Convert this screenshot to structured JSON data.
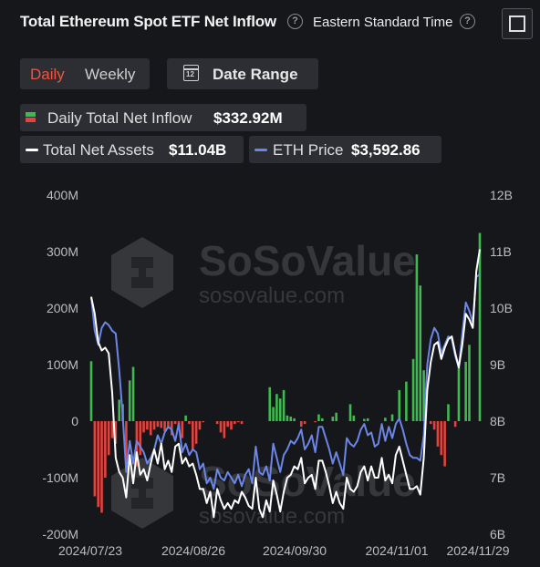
{
  "header": {
    "title": "Total Ethereum Spot ETF Net Inflow",
    "timezone": "Eastern Standard Time"
  },
  "controls": {
    "daily_label": "Daily",
    "weekly_label": "Weekly",
    "date_range_label": "Date Range",
    "calendar_icon_text": "12"
  },
  "legend": {
    "inflow_label": "Daily Total Net Inflow",
    "inflow_value": "$332.92M",
    "assets_label": "Total Net Assets",
    "assets_value": "$11.04B",
    "eth_label": "ETH Price",
    "eth_value": "$3,592.86"
  },
  "watermark": {
    "brand": "SoSoValue",
    "url": "sosovalue.com"
  },
  "colors": {
    "positive_bar": "#3fb950",
    "negative_bar": "#e0443e",
    "total_assets_line": "#ffffff",
    "eth_price_line": "#6b86e6",
    "accent": "#f0553c"
  },
  "chart_data": {
    "type": "bar+line",
    "title": "Total Ethereum Spot ETF Net Inflow",
    "x_tick_labels": [
      "2024/07/23",
      "2024/08/26",
      "2024/09/30",
      "2024/11/01",
      "2024/11/29"
    ],
    "left_axis": {
      "ticks": [
        "400M",
        "300M",
        "200M",
        "100M",
        "0",
        "-100M",
        "-200M"
      ],
      "range_musd": [
        -200,
        400
      ]
    },
    "right_axis": {
      "ticks": [
        "12B",
        "11B",
        "10B",
        "9B",
        "8B",
        "7B",
        "6B"
      ],
      "range_busd": [
        6,
        12
      ]
    },
    "grid": false,
    "series": [
      {
        "name": "Daily Total Net Inflow",
        "kind": "bar",
        "unit": "USD millions",
        "values": [
          106,
          -133,
          -152,
          -162,
          -100,
          -60,
          -30,
          -40,
          38,
          30,
          -70,
          72,
          96,
          -80,
          -60,
          -20,
          -15,
          -25,
          -15,
          -10,
          -12,
          -18,
          -10,
          -25,
          -5,
          -10,
          -30,
          10,
          -5,
          -50,
          -40,
          -15,
          -2,
          0,
          0,
          0,
          -5,
          -20,
          -30,
          -10,
          -15,
          -5,
          -2,
          -5,
          0,
          0,
          0,
          0,
          0,
          0,
          0,
          60,
          25,
          48,
          40,
          55,
          10,
          8,
          5,
          0,
          -10,
          -5,
          0,
          0,
          -2,
          12,
          5,
          0,
          0,
          8,
          15,
          0,
          0,
          0,
          30,
          10,
          0,
          0,
          4,
          5,
          0,
          0,
          0,
          0,
          6,
          0,
          12,
          0,
          55,
          0,
          70,
          0,
          110,
          295,
          240,
          90,
          0,
          -5,
          -15,
          -45,
          -60,
          -80,
          30,
          0,
          -10,
          95,
          0,
          105,
          135,
          0,
          0,
          333
        ]
      },
      {
        "name": "Total Net Assets",
        "kind": "line",
        "unit": "USD billions",
        "values": [
          10.2,
          9.9,
          9.4,
          9.25,
          9.3,
          9.2,
          8.5,
          7.35,
          7.1,
          7.0,
          6.65,
          7.4,
          6.9,
          7.45,
          7.05,
          7.15,
          6.95,
          7.25,
          7.5,
          7.25,
          7.6,
          7.15,
          7.3,
          7.1,
          7.55,
          7.6,
          7.25,
          7.35,
          7.2,
          7.25,
          7.05,
          6.8,
          6.8,
          6.55,
          6.75,
          6.3,
          6.8,
          6.6,
          6.45,
          6.55,
          6.45,
          6.6,
          6.55,
          6.75,
          6.65,
          6.5,
          6.45,
          7.0,
          6.45,
          6.3,
          6.6,
          6.4,
          6.95,
          6.7,
          6.4,
          6.75,
          7.0,
          7.05,
          7.2,
          7.15,
          7.35,
          6.9,
          7.0,
          7.05,
          6.8,
          7.3,
          7.3,
          7.1,
          6.85,
          6.55,
          6.75,
          6.55,
          6.45,
          7.0,
          6.8,
          6.75,
          6.85,
          7.1,
          7.2,
          6.95,
          7.2,
          7.0,
          7.0,
          7.35,
          6.95,
          7.05,
          6.9,
          7.4,
          7.55,
          7.3,
          7.05,
          6.8,
          6.8,
          6.85,
          6.7,
          7.35,
          8.55,
          9.05,
          9.35,
          9.4,
          9.1,
          9.3,
          9.45,
          9.5,
          9.2,
          8.95,
          9.35,
          9.9,
          9.8,
          9.65,
          10.65,
          11.04
        ]
      },
      {
        "name": "ETH Price",
        "kind": "line",
        "unit": "USD billions scale (right axis)",
        "values": [
          10.2,
          9.6,
          9.35,
          9.65,
          9.75,
          9.7,
          9.6,
          9.55,
          8.9,
          8.1,
          7.1,
          7.65,
          7.25,
          7.65,
          7.55,
          7.45,
          7.25,
          7.35,
          7.5,
          7.75,
          7.6,
          7.8,
          7.9,
          7.85,
          7.65,
          7.95,
          7.45,
          7.6,
          7.4,
          7.5,
          7.45,
          7.15,
          7.25,
          6.9,
          7.0,
          6.8,
          7.15,
          7.0,
          6.95,
          7.1,
          7.0,
          6.9,
          7.05,
          6.85,
          7.05,
          7.15,
          6.9,
          7.55,
          7.1,
          7.05,
          7.2,
          6.95,
          7.6,
          7.35,
          7.1,
          7.4,
          7.5,
          7.65,
          7.6,
          7.7,
          7.85,
          7.5,
          7.6,
          7.75,
          7.45,
          7.9,
          7.9,
          7.7,
          7.5,
          7.25,
          7.45,
          7.25,
          7.05,
          7.7,
          7.6,
          7.55,
          7.65,
          7.85,
          7.95,
          7.75,
          7.8,
          7.55,
          7.6,
          7.95,
          7.65,
          7.9,
          7.7,
          7.95,
          8.05,
          7.85,
          7.6,
          7.4,
          7.35,
          7.35,
          7.3,
          7.75,
          9.0,
          9.45,
          9.65,
          9.55,
          9.2,
          9.35,
          9.5,
          9.45,
          9.15,
          8.95,
          9.55,
          10.1,
          9.95,
          9.75,
          10.55,
          10.6
        ]
      }
    ]
  }
}
